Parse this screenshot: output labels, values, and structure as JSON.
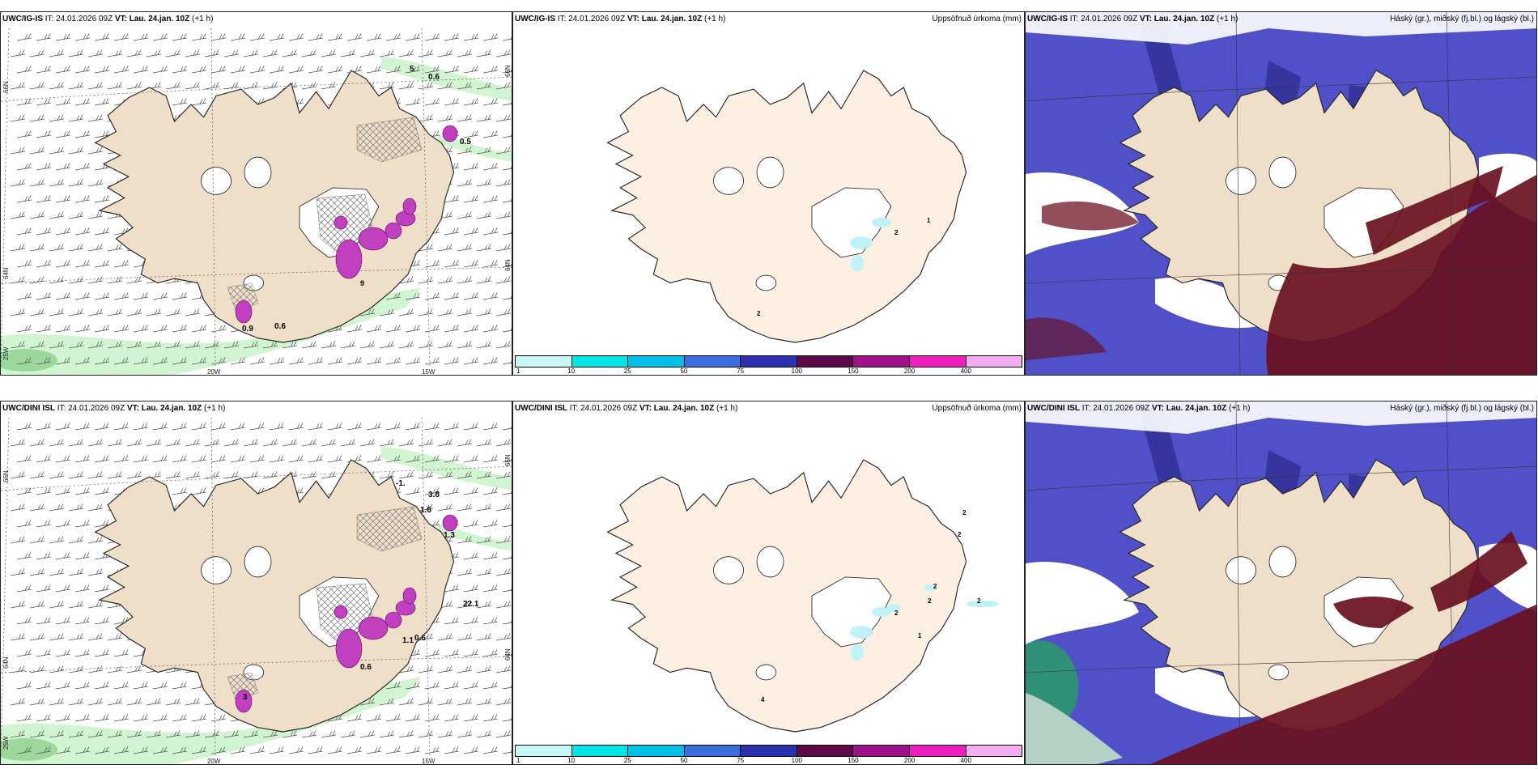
{
  "panels": {
    "top_left": {
      "model": "UWC/IG-IS",
      "it_label": "IT:",
      "it": "24.01.2026 09Z",
      "vt_label": "VT:",
      "vt": "Lau. 24.jan. 10Z",
      "lead": "(+1 h)",
      "labels": [
        "5",
        "0.6",
        "0.5",
        "0.9",
        "0.6",
        "9"
      ]
    },
    "top_mid": {
      "model": "UWC/IG-IS",
      "it_label": "IT:",
      "it": "24.01.2026 09Z",
      "vt_label": "VT:",
      "vt": "Lau. 24.jan. 10Z",
      "lead": "(+1 h)",
      "field": "Uppsöfnuð úrkoma (mm)",
      "labels": [
        "2",
        "1",
        "2"
      ]
    },
    "top_right": {
      "model": "UWC/IG-IS",
      "it_label": "IT:",
      "it": "24.01.2026 09Z",
      "vt_label": "VT:",
      "vt": "Lau. 24.jan. 10Z",
      "lead": "(+1 h)",
      "field": "Háský (gr.), miðský (fj.bl.) og lágský (bl.)"
    },
    "bot_left": {
      "model": "UWC/DINI ISL",
      "it_label": "IT:",
      "it": "24.01.2026 09Z",
      "vt_label": "VT:",
      "vt": "Lau. 24.jan. 10Z",
      "lead": "(+1 h)",
      "labels": [
        "-1.",
        "3.8",
        "1.6",
        "1.3",
        "22.1",
        "1.1",
        "0.6",
        "0.6",
        "3"
      ]
    },
    "bot_mid": {
      "model": "UWC/DINI ISL",
      "it_label": "IT:",
      "it": "24.01.2026 09Z",
      "vt_label": "VT:",
      "vt": "Lau. 24.jan. 10Z",
      "lead": "(+1 h)",
      "field": "Uppsöfnuð úrkoma (mm)",
      "labels": [
        "2",
        "2",
        "2",
        "2",
        "2",
        "2",
        "1",
        "4"
      ]
    },
    "bot_right": {
      "model": "UWC/DINI ISL",
      "it_label": "IT:",
      "it": "24.01.2026 09Z",
      "vt_label": "VT:",
      "vt": "Lau. 24.jan. 10Z",
      "lead": "(+1 h)",
      "field": "Háský (gr.), miðský (fj.bl.) og lágský (bl.)"
    }
  },
  "grid_labels": {
    "lat_66": "66N",
    "lat_64": "64N",
    "lon_25": "25W",
    "lon_20": "20W",
    "lon_15": "15W",
    "right_66": "66N",
    "right_64": "64N"
  },
  "colorbar": {
    "ticks": [
      "1",
      "10",
      "25",
      "50",
      "75",
      "100",
      "150",
      "200",
      "400"
    ],
    "colors": [
      "#c8f7f7",
      "#00e5e5",
      "#00c0e8",
      "#3a6de0",
      "#2a30b0",
      "#5e0a48",
      "#a0108a",
      "#ef1fbf",
      "#f2aef0"
    ]
  },
  "colors": {
    "land": "#efdfc8",
    "land_mid": "#fdf0e3",
    "coast": "#222222",
    "snow": "#ffffff",
    "precip_light": "#c6f3c6",
    "precip_pink": "#c040c0",
    "cloud_high": "#6a1020",
    "cloud_mid": "#5050c8",
    "cloud_low": "#2a2a8a",
    "hatch": "#777777"
  }
}
